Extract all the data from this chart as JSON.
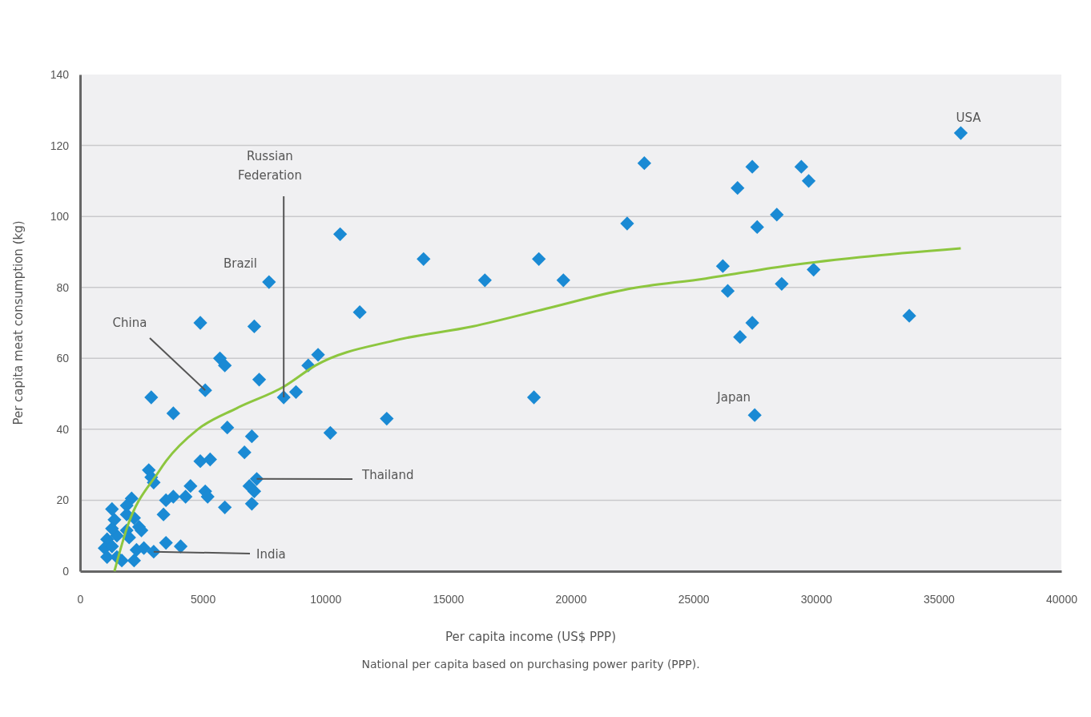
{
  "chart_data": {
    "type": "scatter",
    "xlabel": "Per capita income (US$ PPP)",
    "ylabel": "Per capita meat consumption (kg)",
    "xlim": [
      0,
      40000
    ],
    "xticks": [
      0,
      5000,
      10000,
      15000,
      20000,
      25000,
      30000,
      35000,
      40000
    ],
    "ylim": [
      0,
      140
    ],
    "yticks": [
      0,
      20,
      40,
      60,
      80,
      100,
      120,
      140
    ],
    "grid": "y",
    "series": [
      {
        "marker": "diamond",
        "color": "#1a8ad4",
        "x": [
          35900,
          23000,
          27400,
          29400,
          29700,
          26800,
          22300,
          27600,
          28400,
          10600,
          7700,
          14000,
          18700,
          16500,
          19700,
          26200,
          26400,
          28600,
          29900,
          11400,
          33800,
          4900,
          7100,
          27400,
          26900,
          9700,
          9300,
          5700,
          5900,
          7300,
          8800,
          5100,
          8300,
          2900,
          18500,
          3800,
          12500,
          27500,
          10200,
          6000,
          7000,
          6700,
          4900,
          5300,
          7200,
          6900,
          7100,
          7000,
          5900,
          5100,
          5200,
          4500,
          4300,
          3800,
          3500,
          3400,
          2800,
          2900,
          3000,
          2100,
          1900,
          1300,
          1400,
          1900,
          2200,
          1900,
          2400,
          2500,
          1100,
          1500,
          2000,
          1000,
          1300,
          1100,
          1500,
          2300,
          2600,
          2200,
          1700,
          3000,
          3500,
          4100,
          1300
        ],
        "values": [
          123.5,
          115,
          114,
          114,
          110,
          108,
          98,
          97,
          100.5,
          95,
          81.5,
          88,
          88,
          82,
          82,
          86,
          79,
          81,
          85,
          73,
          72,
          70,
          69,
          70,
          66,
          61,
          58,
          60,
          58,
          54,
          50.5,
          51,
          49,
          49,
          49,
          44.5,
          43,
          44,
          39,
          40.5,
          38,
          33.5,
          31,
          31.5,
          26,
          24,
          22.5,
          19,
          18,
          22.5,
          21,
          24,
          21,
          21,
          20,
          16,
          28.5,
          26.5,
          25,
          20.5,
          18.5,
          17.5,
          14.5,
          16,
          15,
          11.5,
          12.5,
          11.5,
          9,
          10,
          9.5,
          6.5,
          7,
          4,
          4,
          6,
          6.5,
          3,
          3,
          5.5,
          8,
          7,
          12
        ]
      },
      {
        "type": "line",
        "color": "#8dc63f",
        "x": [
          1400,
          1900,
          3200,
          3500,
          4800,
          6400,
          8300,
          9600,
          12800,
          16000,
          19000,
          22300,
          25500,
          28700,
          31800,
          35900
        ],
        "values": [
          0,
          12,
          28,
          31,
          40,
          46,
          52,
          58,
          65,
          69,
          74,
          79.5,
          82.5,
          86,
          88.5,
          91
        ]
      }
    ],
    "annotations": [
      {
        "text": "USA",
        "x": 35900,
        "y": 123.5
      },
      {
        "text": "Russian Federation",
        "x": 8300,
        "y": 49
      },
      {
        "text": "Brazil",
        "x": 7700,
        "y": 81.5
      },
      {
        "text": "China",
        "x": 5100,
        "y": 51
      },
      {
        "text": "Japan",
        "x": 27500,
        "y": 44
      },
      {
        "text": "Thailand",
        "x": 7200,
        "y": 26
      },
      {
        "text": "India",
        "x": 3000,
        "y": 5.5
      },
      "National per capita based on purchasing power parity (PPP)."
    ]
  }
}
